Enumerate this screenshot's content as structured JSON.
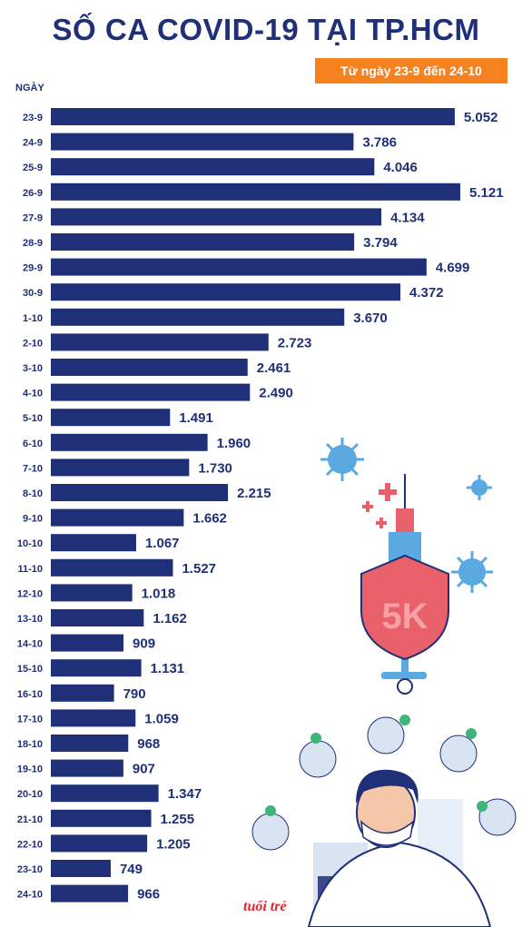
{
  "header": {
    "title": "SỐ CA COVID-19 TẠI TP.HCM",
    "subtitle": "Từ ngày 23-9 đến 24-10",
    "ylabel": "NGÀY"
  },
  "logo": {
    "text": "tuổi trẻ"
  },
  "illustration": {
    "shield_text": "5K"
  },
  "colors": {
    "bar": "#1f2f78",
    "accent": "#f5821f",
    "shield": "#e8606a"
  },
  "chart_data": {
    "type": "bar",
    "orientation": "horizontal",
    "title": "SỐ CA COVID-19 TẠI TP.HCM",
    "subtitle": "Từ ngày 23-9 đến 24-10",
    "ylabel": "NGÀY",
    "xlim": [
      0,
      5121
    ],
    "categories": [
      "23-9",
      "24-9",
      "25-9",
      "26-9",
      "27-9",
      "28-9",
      "29-9",
      "30-9",
      "1-10",
      "2-10",
      "3-10",
      "4-10",
      "5-10",
      "6-10",
      "7-10",
      "8-10",
      "9-10",
      "10-10",
      "11-10",
      "12-10",
      "13-10",
      "14-10",
      "15-10",
      "16-10",
      "17-10",
      "18-10",
      "19-10",
      "20-10",
      "21-10",
      "22-10",
      "23-10",
      "24-10"
    ],
    "values": [
      5052,
      3786,
      4046,
      5121,
      4134,
      3794,
      4699,
      4372,
      3670,
      2723,
      2461,
      2490,
      1491,
      1960,
      1730,
      2215,
      1662,
      1067,
      1527,
      1018,
      1162,
      909,
      1131,
      790,
      1059,
      968,
      907,
      1347,
      1255,
      1205,
      749,
      966
    ],
    "value_labels": [
      "5.052",
      "3.786",
      "4.046",
      "5.121",
      "4.134",
      "3.794",
      "4.699",
      "4.372",
      "3.670",
      "2.723",
      "2.461",
      "2.490",
      "1.491",
      "1.960",
      "1.730",
      "2.215",
      "1.662",
      "1.067",
      "1.527",
      "1.018",
      "1.162",
      "909",
      "1.131",
      "790",
      "1.059",
      "968",
      "907",
      "1.347",
      "1.255",
      "1.205",
      "749",
      "966"
    ]
  }
}
